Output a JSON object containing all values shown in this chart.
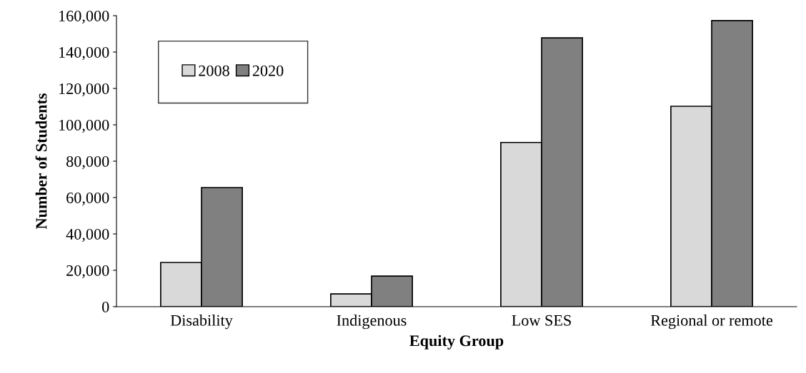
{
  "chart_data": {
    "type": "bar",
    "xlabel": "Equity Group",
    "ylabel": "Number of Students",
    "categories": [
      "Disability",
      "Indigenous",
      "Low SES",
      "Regional or remote"
    ],
    "series": [
      {
        "name": "2008",
        "color": "#d9d9d9",
        "values": [
          24300,
          7000,
          90300,
          110200
        ]
      },
      {
        "name": "2020",
        "color": "#808080",
        "values": [
          65500,
          16800,
          147800,
          157300
        ]
      }
    ],
    "ylim": [
      0,
      160000
    ],
    "yticks": [
      {
        "value": 0,
        "label": "0"
      },
      {
        "value": 20000,
        "label": "20,000"
      },
      {
        "value": 40000,
        "label": "40,000"
      },
      {
        "value": 60000,
        "label": "60,000"
      },
      {
        "value": 80000,
        "label": "80,000"
      },
      {
        "value": 100000,
        "label": "100,000"
      },
      {
        "value": 120000,
        "label": "120,000"
      },
      {
        "value": 140000,
        "label": "140,000"
      },
      {
        "value": 160000,
        "label": "160,000"
      }
    ],
    "grid": false,
    "legend": "top left"
  }
}
